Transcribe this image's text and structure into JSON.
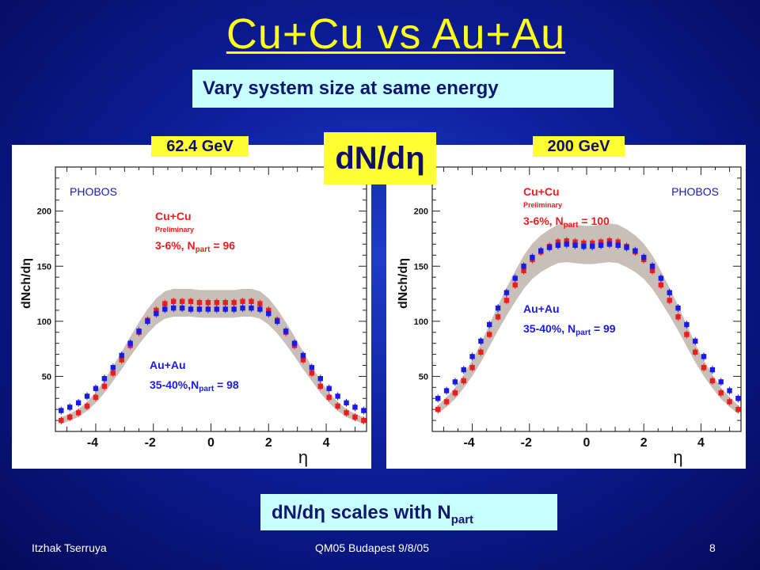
{
  "slide": {
    "title": "Cu+Cu vs Au+Au",
    "subtitle": "Vary system size at same energy",
    "center_tag": "dN/dη",
    "bottom_note_prefix": "dN/dη  scales with N",
    "bottom_note_sub": "part",
    "footer_author": "Itzhak Tserruya",
    "footer_event": "QM05 Budapest 9/8/05",
    "page_number": "8"
  },
  "colors": {
    "cucu": "#ee1c1c",
    "auau": "#1a1ae6",
    "band": "#b4aaa0",
    "tag": "#ffff33",
    "box": "#c8ffff"
  },
  "chart_data": [
    {
      "type": "scatter",
      "energy_label": "62.4 GeV",
      "experiment": "PHOBOS",
      "xlabel": "η",
      "ylabel": "dNch/dη",
      "xlim": [
        -5.4,
        5.4
      ],
      "ylim": [
        0,
        240
      ],
      "xticks": [
        -4,
        -2,
        0,
        2,
        4
      ],
      "yticks": [
        50,
        100,
        150,
        200
      ],
      "x": [
        -5.2,
        -4.9,
        -4.6,
        -4.3,
        -4.0,
        -3.7,
        -3.4,
        -3.1,
        -2.8,
        -2.5,
        -2.2,
        -1.9,
        -1.6,
        -1.3,
        -1.0,
        -0.7,
        -0.4,
        -0.1,
        0.2,
        0.5,
        0.8,
        1.1,
        1.4,
        1.7,
        2.0,
        2.3,
        2.6,
        2.9,
        3.2,
        3.5,
        3.8,
        4.1,
        4.4,
        4.7,
        5.0,
        5.3
      ],
      "series": [
        {
          "name": "Cu+Cu",
          "label_lines": [
            "Cu+Cu",
            "Preliminary",
            "3-6%, N",
            "part",
            " = 96"
          ],
          "values": [
            10,
            13,
            17,
            23,
            31,
            41,
            53,
            65,
            78,
            90,
            101,
            110,
            116,
            118,
            118,
            118,
            117,
            117,
            117,
            117,
            117,
            118,
            118,
            116,
            110,
            101,
            90,
            78,
            65,
            53,
            41,
            31,
            23,
            17,
            13,
            10
          ]
        },
        {
          "name": "Au+Au",
          "label_lines": [
            "Au+Au",
            "35-40%,N",
            "part",
            " = 98"
          ],
          "values": [
            19,
            22,
            26,
            32,
            39,
            48,
            58,
            69,
            80,
            91,
            100,
            107,
            111,
            112,
            112,
            111,
            111,
            111,
            111,
            111,
            111,
            112,
            112,
            111,
            107,
            100,
            91,
            80,
            69,
            58,
            48,
            39,
            32,
            26,
            22,
            19
          ]
        }
      ]
    },
    {
      "type": "scatter",
      "energy_label": "200 GeV",
      "experiment": "PHOBOS",
      "xlabel": "η",
      "ylabel": "dNch/dη",
      "xlim": [
        -5.4,
        5.4
      ],
      "ylim": [
        0,
        240
      ],
      "xticks": [
        -4,
        -2,
        0,
        2,
        4
      ],
      "yticks": [
        50,
        100,
        150,
        200
      ],
      "x": [
        -5.2,
        -4.9,
        -4.6,
        -4.3,
        -4.0,
        -3.7,
        -3.4,
        -3.1,
        -2.8,
        -2.5,
        -2.2,
        -1.9,
        -1.6,
        -1.3,
        -1.0,
        -0.7,
        -0.4,
        -0.1,
        0.2,
        0.5,
        0.8,
        1.1,
        1.4,
        1.7,
        2.0,
        2.3,
        2.6,
        2.9,
        3.2,
        3.5,
        3.8,
        4.1,
        4.4,
        4.7,
        5.0,
        5.3
      ],
      "series": [
        {
          "name": "Cu+Cu",
          "label_lines": [
            "Cu+Cu",
            "Preliminary",
            "3-6%, N",
            "part",
            " = 100"
          ],
          "values": [
            20,
            27,
            35,
            46,
            58,
            72,
            88,
            104,
            119,
            133,
            146,
            156,
            163,
            168,
            172,
            173,
            172,
            171,
            171,
            172,
            173,
            172,
            168,
            163,
            156,
            146,
            133,
            119,
            104,
            88,
            72,
            58,
            46,
            35,
            27,
            20
          ]
        },
        {
          "name": "Au+Au",
          "label_lines": [
            "Au+Au",
            "35-40%, N",
            "part",
            " = 99"
          ],
          "values": [
            30,
            37,
            45,
            56,
            68,
            82,
            97,
            112,
            126,
            139,
            150,
            158,
            164,
            167,
            169,
            170,
            169,
            168,
            168,
            169,
            170,
            169,
            167,
            164,
            158,
            150,
            139,
            126,
            112,
            97,
            82,
            68,
            56,
            45,
            37,
            30
          ]
        }
      ]
    }
  ]
}
